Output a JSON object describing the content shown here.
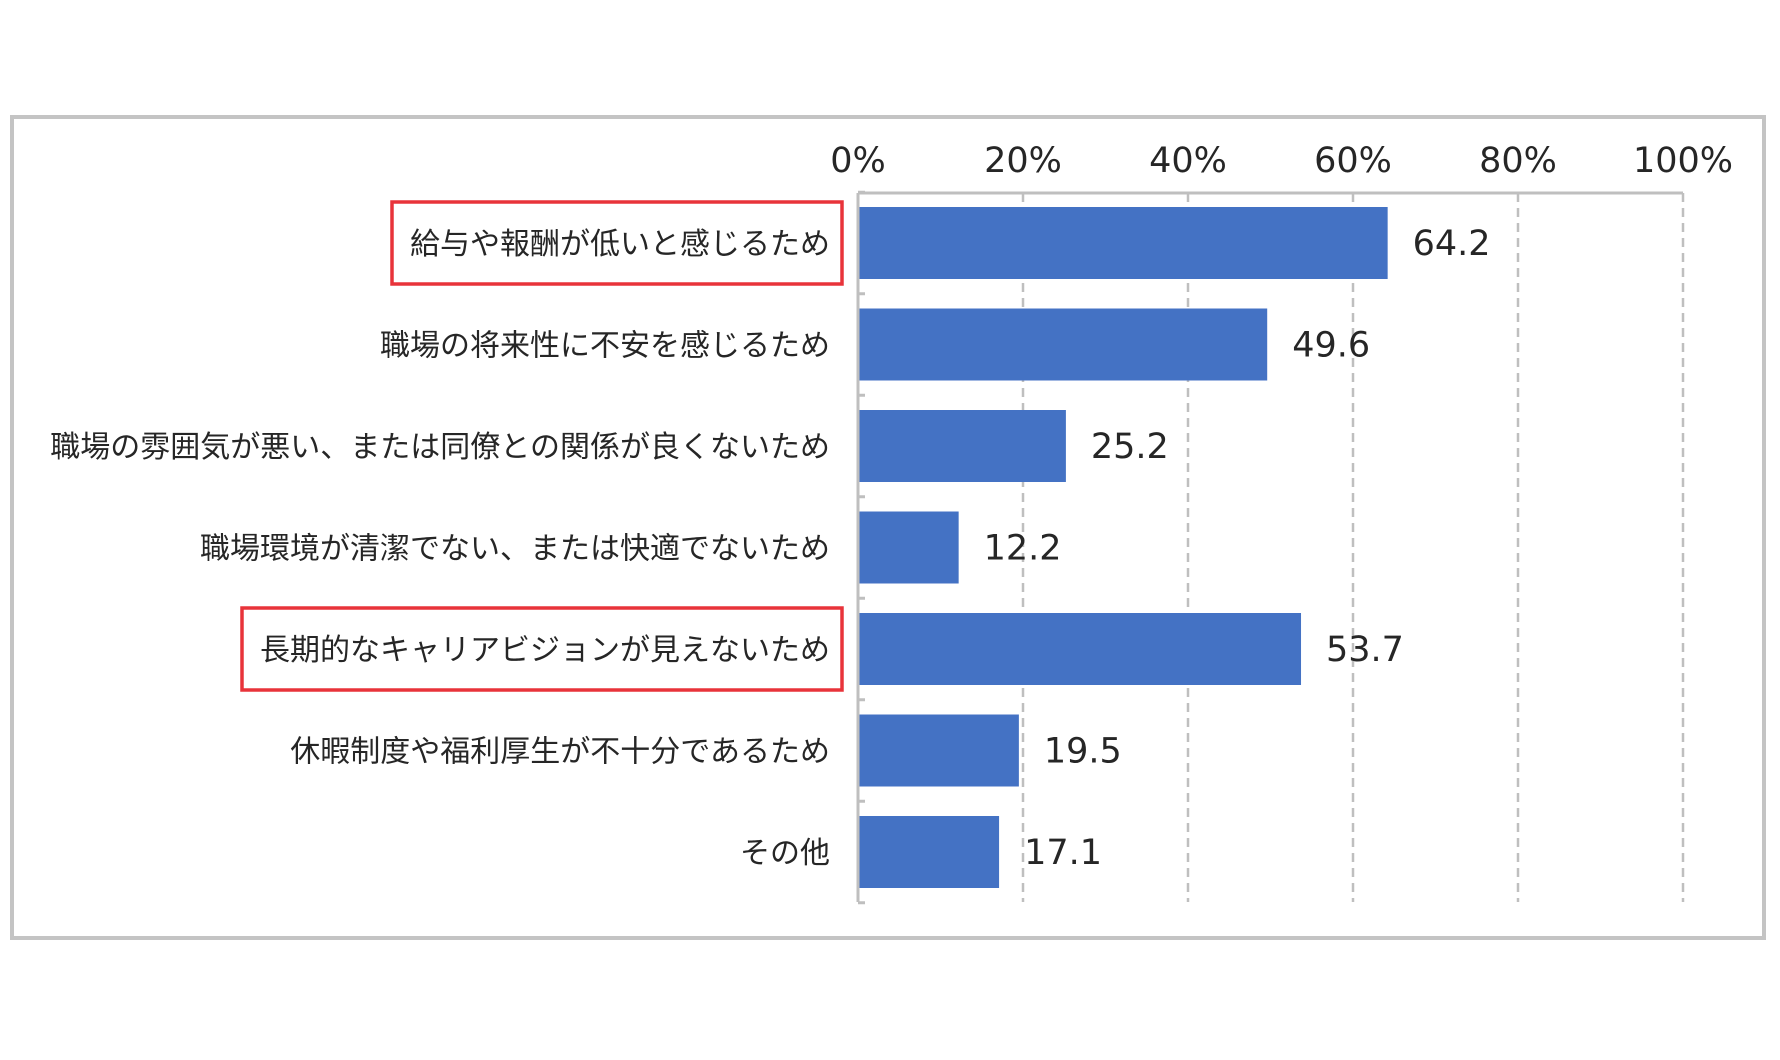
{
  "chart_data": {
    "type": "bar",
    "orientation": "horizontal",
    "categories": [
      "給与や報酬が低いと感じるため",
      "職場の将来性に不安を感じるため",
      "職場の雰囲気が悪い、または同僚との関係が良くないため",
      "職場環境が清潔でない、または快適でないため",
      "長期的なキャリアビジョンが見えないため",
      "休暇制度や福利厚生が不十分であるため",
      "その他"
    ],
    "values": [
      64.2,
      49.6,
      25.2,
      12.2,
      53.7,
      19.5,
      17.1
    ],
    "value_labels": [
      "64.2",
      "49.6",
      "25.2",
      "12.2",
      "53.7",
      "19.5",
      "17.1"
    ],
    "xlim": [
      0,
      100
    ],
    "x_ticks": [
      0,
      20,
      40,
      60,
      80,
      100
    ],
    "x_tick_labels": [
      "0%",
      "20%",
      "40%",
      "60%",
      "80%",
      "100%"
    ],
    "x_axis_position": "top",
    "grid": "vertical dashed",
    "legend": "none",
    "highlighted_categories": [
      0,
      4
    ],
    "colors": {
      "bar": "#4472C4",
      "highlight_box": "#E8333A",
      "grid": "#bfbfbf",
      "axis": "#bfbfbf",
      "frame": "#c4c4c4",
      "text": "#262626"
    }
  }
}
